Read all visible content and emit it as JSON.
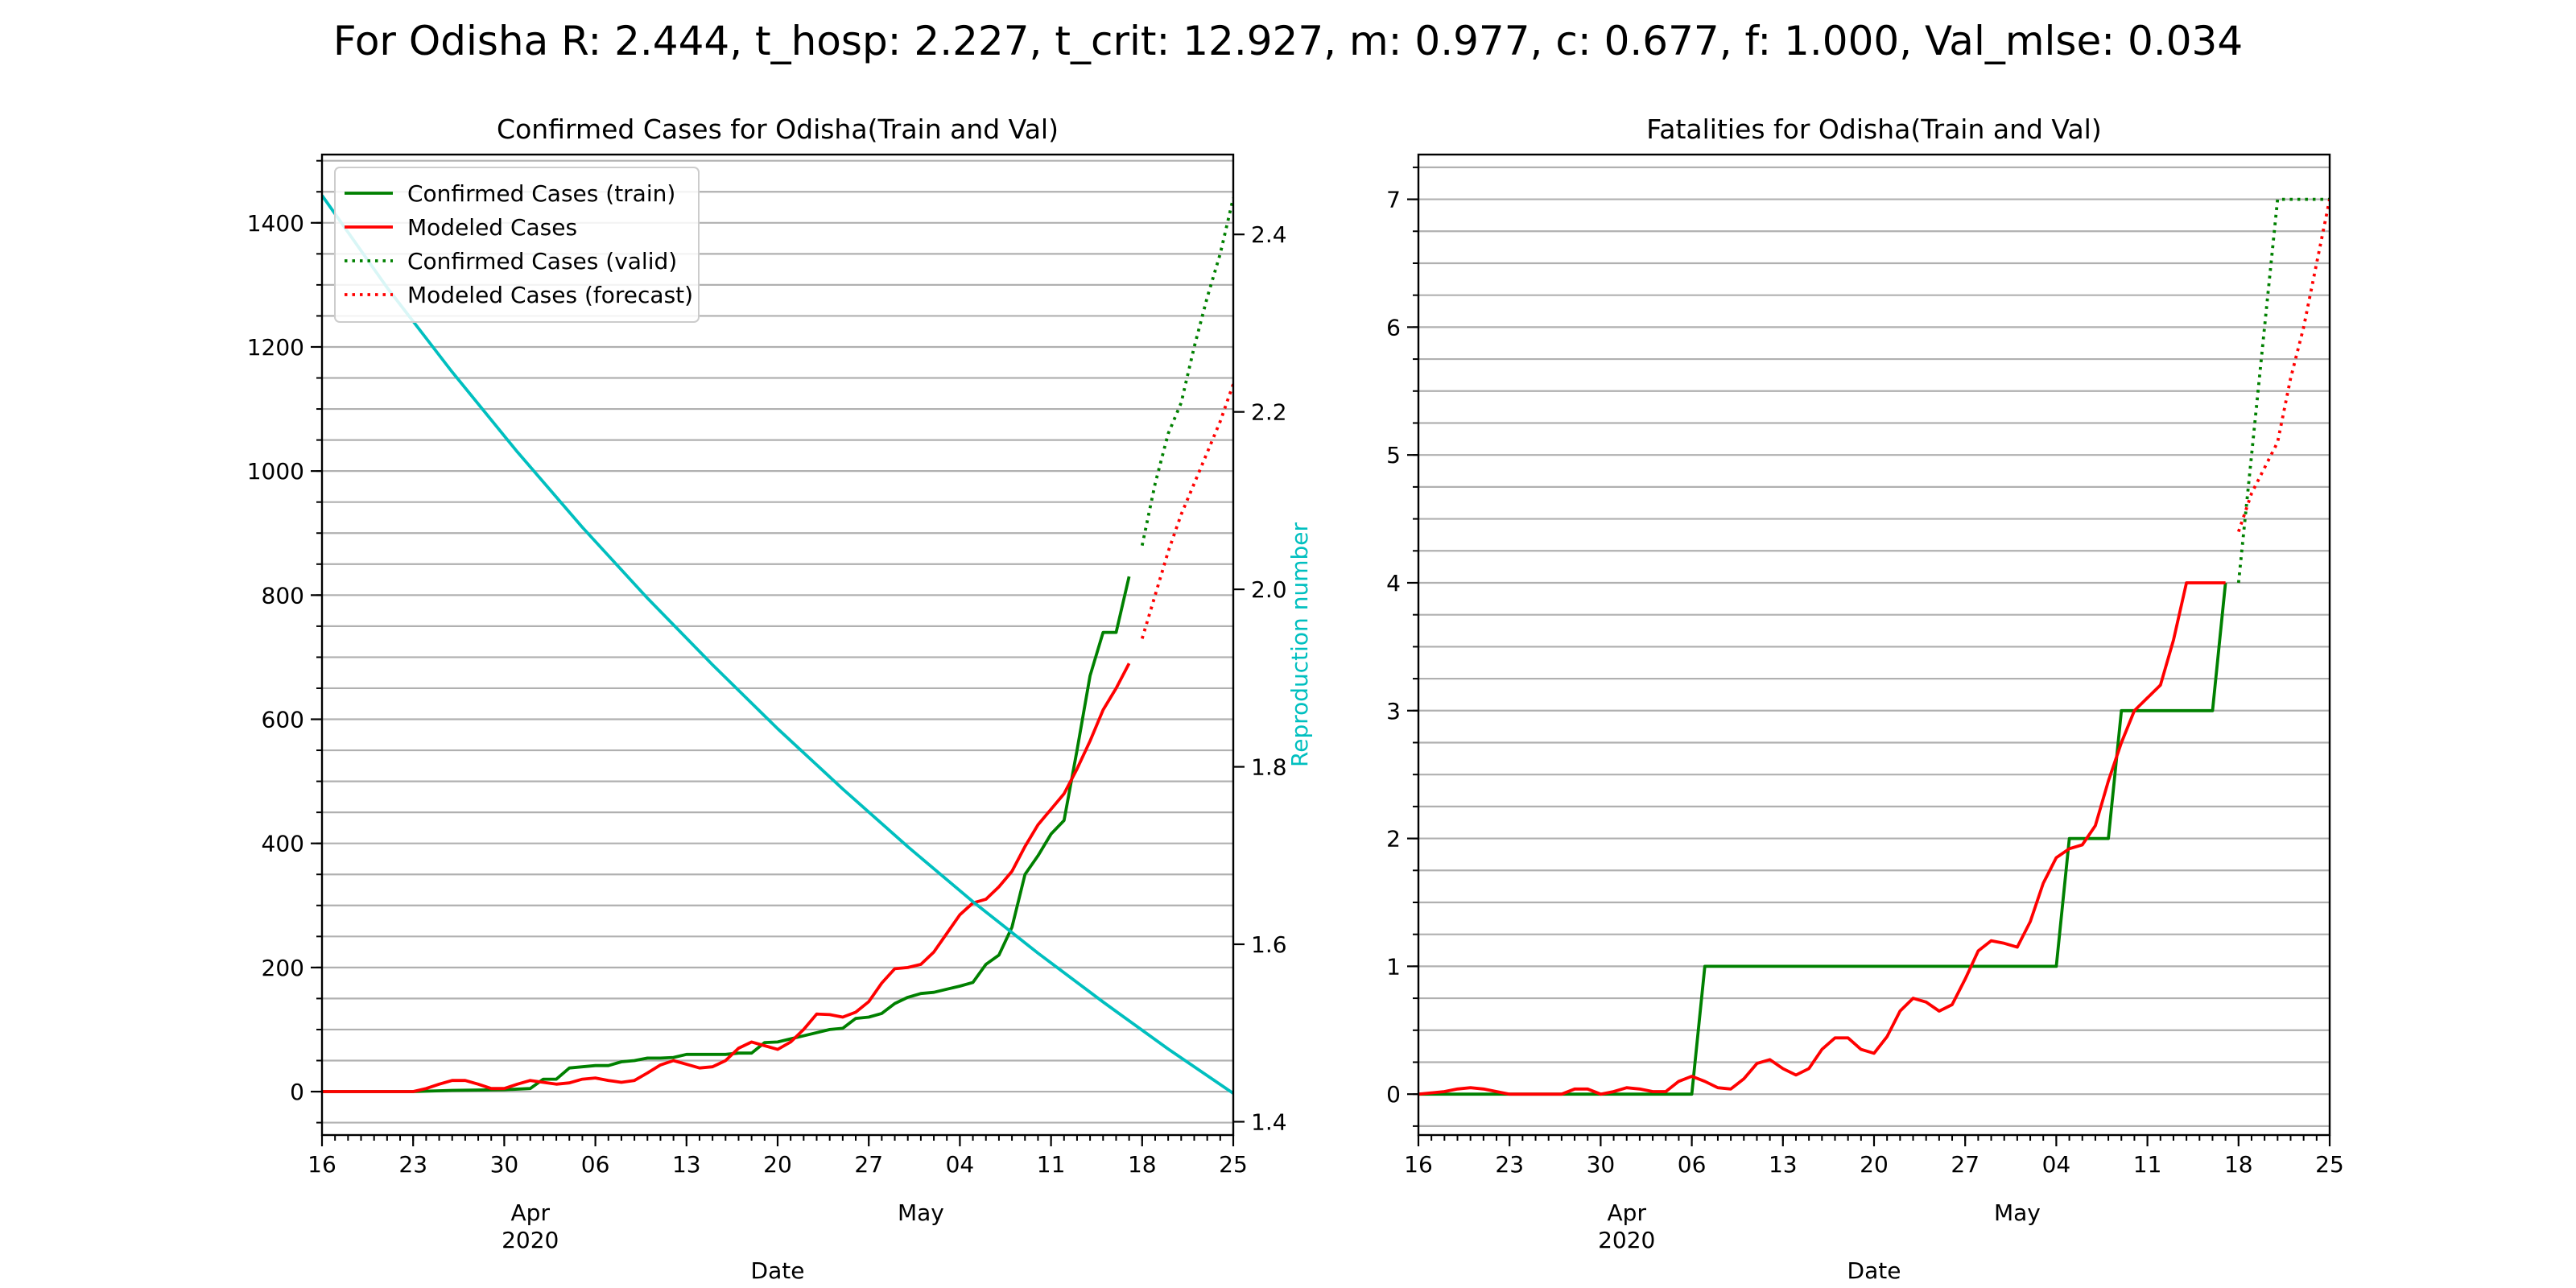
{
  "suptitle": "For Odisha R: 2.444, t_hosp: 2.227, t_crit: 12.927, m: 0.977, c: 0.677, f: 1.000, Val_mlse: 0.034",
  "colors": {
    "train": "#008000",
    "model": "#ff0000",
    "repro": "#00bfbf",
    "grid": "#b0b0b0",
    "axis": "#000000"
  },
  "chart_data": [
    {
      "type": "line",
      "title": "Confirmed Cases for Odisha(Train and Val)",
      "xlabel": "Date",
      "ylabel": "",
      "y2label": "Reproduction number",
      "x_start_date": "2020-03-16",
      "xlim": [
        0,
        70
      ],
      "ylim": [
        -70,
        1510
      ],
      "y2lim": [
        1.385,
        2.49
      ],
      "yticks": [
        0,
        200,
        400,
        600,
        800,
        1000,
        1200,
        1400
      ],
      "y2ticks": [
        "1.4",
        "1.6",
        "1.8",
        "2.0",
        "2.2",
        "2.4"
      ],
      "xticks": [
        {
          "d": 0,
          "label": "16"
        },
        {
          "d": 7,
          "label": "23"
        },
        {
          "d": 14,
          "label": "30"
        },
        {
          "d": 21,
          "label": "06"
        },
        {
          "d": 28,
          "label": "13"
        },
        {
          "d": 35,
          "label": "20"
        },
        {
          "d": 42,
          "label": "27"
        },
        {
          "d": 49,
          "label": "04"
        },
        {
          "d": 56,
          "label": "11"
        },
        {
          "d": 63,
          "label": "18"
        },
        {
          "d": 70,
          "label": "25"
        }
      ],
      "month_labels": [
        {
          "d": 16,
          "label": "Apr",
          "year": "2020"
        },
        {
          "d": 46,
          "label": "May",
          "year": ""
        }
      ],
      "grid": "horizontal (major and minor)",
      "legend": "upper left",
      "series": [
        {
          "name": "Confirmed Cases (train)",
          "style": "solid",
          "color": "#008000",
          "axis": "left",
          "x": [
            0,
            7,
            10,
            14,
            16,
            17,
            18,
            19,
            20,
            21,
            22,
            23,
            24,
            25,
            26,
            27,
            28,
            29,
            30,
            31,
            32,
            33,
            34,
            35,
            36,
            37,
            38,
            39,
            40,
            41,
            42,
            43,
            44,
            45,
            46,
            47,
            48,
            49,
            50,
            51,
            52,
            53,
            54,
            55,
            56,
            57,
            58,
            59,
            60,
            61,
            62
          ],
          "y": [
            0,
            0,
            2,
            3,
            5,
            20,
            20,
            38,
            40,
            42,
            42,
            48,
            50,
            54,
            54,
            55,
            60,
            60,
            60,
            60,
            62,
            62,
            79,
            80,
            85,
            90,
            95,
            100,
            102,
            118,
            120,
            126,
            142,
            152,
            158,
            160,
            165,
            170,
            176,
            205,
            220,
            265,
            350,
            380,
            415,
            437,
            550,
            670,
            740,
            740,
            830
          ]
        },
        {
          "name": "Modeled Cases",
          "style": "solid",
          "color": "#ff0000",
          "axis": "left",
          "x": [
            0,
            4,
            6,
            7,
            8,
            9,
            10,
            11,
            12,
            13,
            14,
            15,
            16,
            17,
            18,
            19,
            20,
            21,
            22,
            23,
            24,
            25,
            26,
            27,
            28,
            29,
            30,
            31,
            32,
            33,
            34,
            35,
            36,
            37,
            38,
            39,
            40,
            41,
            42,
            43,
            44,
            45,
            46,
            47,
            48,
            49,
            50,
            51,
            52,
            53,
            54,
            55,
            56,
            57,
            58,
            59,
            60,
            61,
            62
          ],
          "y": [
            0,
            0,
            0,
            0,
            5,
            12,
            18,
            18,
            12,
            5,
            5,
            12,
            18,
            15,
            12,
            14,
            20,
            22,
            18,
            15,
            18,
            30,
            43,
            50,
            44,
            38,
            40,
            50,
            70,
            80,
            74,
            68,
            80,
            100,
            125,
            124,
            120,
            128,
            145,
            175,
            198,
            200,
            205,
            225,
            255,
            285,
            304,
            310,
            330,
            355,
            395,
            430,
            455,
            480,
            520,
            565,
            615,
            650,
            690
          ]
        },
        {
          "name": "Confirmed Cases (valid)",
          "style": "dotted",
          "color": "#008000",
          "axis": "left",
          "x": [
            63,
            64,
            65,
            66,
            67,
            68,
            69,
            70
          ],
          "y": [
            880,
            980,
            1060,
            1110,
            1200,
            1280,
            1350,
            1440
          ]
        },
        {
          "name": "Modeled Cases (forecast)",
          "style": "dotted",
          "color": "#ff0000",
          "axis": "left",
          "x": [
            63,
            64,
            65,
            66,
            67,
            68,
            69,
            70
          ],
          "y": [
            730,
            800,
            870,
            930,
            980,
            1030,
            1080,
            1140
          ]
        },
        {
          "name": "",
          "style": "solid",
          "color": "#00bfbf",
          "axis": "right",
          "x": [
            0,
            5,
            10,
            15,
            20,
            25,
            30,
            35,
            40,
            45,
            50,
            55,
            60,
            65,
            70
          ],
          "y": [
            2.444,
            2.34,
            2.245,
            2.155,
            2.07,
            1.99,
            1.915,
            1.843,
            1.775,
            1.71,
            1.648,
            1.59,
            1.535,
            1.482,
            1.432
          ]
        }
      ]
    },
    {
      "type": "line",
      "title": "Fatalities for Odisha(Train and Val)",
      "xlabel": "Date",
      "ylabel": "",
      "x_start_date": "2020-03-16",
      "xlim": [
        0,
        70
      ],
      "ylim": [
        -0.32,
        7.35
      ],
      "yticks": [
        0,
        1,
        2,
        3,
        4,
        5,
        6,
        7
      ],
      "xticks": [
        {
          "d": 0,
          "label": "16"
        },
        {
          "d": 7,
          "label": "23"
        },
        {
          "d": 14,
          "label": "30"
        },
        {
          "d": 21,
          "label": "06"
        },
        {
          "d": 28,
          "label": "13"
        },
        {
          "d": 35,
          "label": "20"
        },
        {
          "d": 42,
          "label": "27"
        },
        {
          "d": 49,
          "label": "04"
        },
        {
          "d": 56,
          "label": "11"
        },
        {
          "d": 63,
          "label": "18"
        },
        {
          "d": 70,
          "label": "25"
        }
      ],
      "month_labels": [
        {
          "d": 16,
          "label": "Apr",
          "year": "2020"
        },
        {
          "d": 46,
          "label": "May",
          "year": ""
        }
      ],
      "grid": "horizontal (major and minor)",
      "legend": "none",
      "series": [
        {
          "name": "",
          "style": "solid",
          "color": "#008000",
          "axis": "left",
          "x": [
            0,
            21,
            22,
            49,
            50,
            53,
            54,
            61,
            62
          ],
          "y": [
            0,
            0,
            1,
            1,
            2,
            2,
            3,
            3,
            4
          ]
        },
        {
          "name": "",
          "style": "solid",
          "color": "#ff0000",
          "axis": "left",
          "x": [
            0,
            2,
            3,
            4,
            5,
            6,
            7,
            8,
            9,
            10,
            11,
            12,
            13,
            14,
            15,
            16,
            17,
            18,
            19,
            20,
            21,
            22,
            23,
            24,
            25,
            26,
            27,
            28,
            29,
            30,
            31,
            32,
            33,
            34,
            35,
            36,
            37,
            38,
            39,
            40,
            41,
            42,
            43,
            44,
            45,
            46,
            47,
            48,
            49,
            50,
            51,
            52,
            53,
            54,
            55,
            56,
            57,
            58,
            59,
            60,
            61,
            62
          ],
          "y": [
            0,
            0.02,
            0.04,
            0.05,
            0.04,
            0.02,
            0,
            0,
            0,
            0,
            0,
            0.04,
            0.04,
            0,
            0.02,
            0.05,
            0.04,
            0.02,
            0.02,
            0.1,
            0.14,
            0.1,
            0.05,
            0.04,
            0.12,
            0.24,
            0.27,
            0.2,
            0.15,
            0.2,
            0.35,
            0.44,
            0.44,
            0.35,
            0.32,
            0.45,
            0.65,
            0.75,
            0.72,
            0.65,
            0.7,
            0.9,
            1.12,
            1.2,
            1.18,
            1.15,
            1.35,
            1.65,
            1.85,
            1.92,
            1.95,
            2.1,
            2.45,
            2.75,
            3.0,
            3.1,
            3.2,
            3.55,
            4.0,
            4.0,
            4.0,
            4.0
          ]
        },
        {
          "name": "",
          "style": "dotted",
          "color": "#008000",
          "axis": "left",
          "x": [
            63,
            64,
            65,
            66,
            67,
            68,
            69,
            70
          ],
          "y": [
            4,
            5,
            6,
            7,
            7,
            7,
            7,
            7
          ]
        },
        {
          "name": "",
          "style": "dotted",
          "color": "#ff0000",
          "axis": "left",
          "x": [
            63,
            64,
            65,
            66,
            67,
            68,
            69,
            70
          ],
          "y": [
            4.4,
            4.7,
            4.9,
            5.1,
            5.6,
            6.0,
            6.5,
            7.0
          ]
        }
      ]
    }
  ]
}
